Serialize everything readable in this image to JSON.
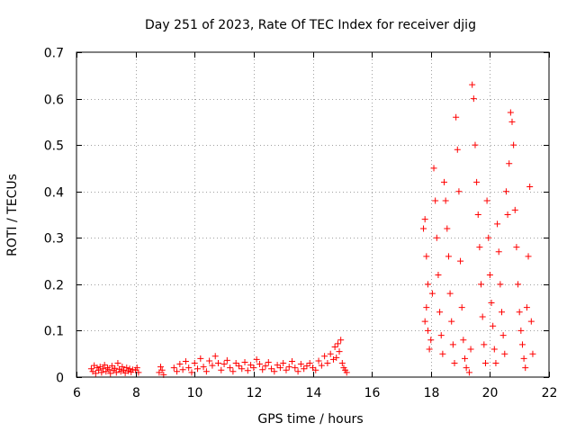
{
  "chart_data": {
    "type": "scatter",
    "title": "Day 251 of 2023, Rate Of TEC Index for receiver djig",
    "xlabel": "GPS time / hours",
    "ylabel": "ROTI / TECUs",
    "xlim": [
      6,
      22
    ],
    "ylim": [
      0,
      0.7
    ],
    "x_ticks": [
      6,
      8,
      10,
      12,
      14,
      16,
      18,
      20,
      22
    ],
    "y_ticks": [
      0,
      0.1,
      0.2,
      0.3,
      0.4,
      0.5,
      0.6,
      0.7
    ],
    "x_tick_labels": [
      "6",
      "8",
      "10",
      "12",
      "14",
      "16",
      "18",
      "20",
      "22"
    ],
    "y_tick_labels": [
      "0",
      "0.1",
      "0.2",
      "0.3",
      "0.4",
      "0.5",
      "0.6",
      "0.7"
    ],
    "grid": true,
    "marker": "+",
    "color": "#ff0000",
    "series": [
      {
        "name": "ROTI",
        "points": [
          [
            6.5,
            0.018
          ],
          [
            6.55,
            0.012
          ],
          [
            6.6,
            0.025
          ],
          [
            6.65,
            0.008
          ],
          [
            6.7,
            0.02
          ],
          [
            6.75,
            0.015
          ],
          [
            6.8,
            0.022
          ],
          [
            6.85,
            0.01
          ],
          [
            6.9,
            0.018
          ],
          [
            6.95,
            0.026
          ],
          [
            7.0,
            0.012
          ],
          [
            7.05,
            0.02
          ],
          [
            7.1,
            0.016
          ],
          [
            7.15,
            0.008
          ],
          [
            7.2,
            0.024
          ],
          [
            7.25,
            0.014
          ],
          [
            7.3,
            0.019
          ],
          [
            7.35,
            0.01
          ],
          [
            7.4,
            0.03
          ],
          [
            7.45,
            0.017
          ],
          [
            7.5,
            0.012
          ],
          [
            7.55,
            0.022
          ],
          [
            7.6,
            0.015
          ],
          [
            7.65,
            0.009
          ],
          [
            7.7,
            0.02
          ],
          [
            7.75,
            0.013
          ],
          [
            7.8,
            0.018
          ],
          [
            7.85,
            0.011
          ],
          [
            7.9,
            0.016
          ],
          [
            8.0,
            0.015
          ],
          [
            8.05,
            0.02
          ],
          [
            8.1,
            0.01
          ],
          [
            8.8,
            0.01
          ],
          [
            8.85,
            0.022
          ],
          [
            8.9,
            0.015
          ],
          [
            8.95,
            0.005
          ],
          [
            9.3,
            0.02
          ],
          [
            9.4,
            0.012
          ],
          [
            9.5,
            0.028
          ],
          [
            9.6,
            0.016
          ],
          [
            9.7,
            0.034
          ],
          [
            9.8,
            0.02
          ],
          [
            9.9,
            0.01
          ],
          [
            10.0,
            0.03
          ],
          [
            10.1,
            0.018
          ],
          [
            10.2,
            0.04
          ],
          [
            10.3,
            0.022
          ],
          [
            10.4,
            0.012
          ],
          [
            10.5,
            0.035
          ],
          [
            10.6,
            0.025
          ],
          [
            10.7,
            0.045
          ],
          [
            10.8,
            0.03
          ],
          [
            10.9,
            0.015
          ],
          [
            11.0,
            0.028
          ],
          [
            11.1,
            0.036
          ],
          [
            11.2,
            0.02
          ],
          [
            11.3,
            0.012
          ],
          [
            11.4,
            0.03
          ],
          [
            11.5,
            0.024
          ],
          [
            11.6,
            0.018
          ],
          [
            11.7,
            0.032
          ],
          [
            11.8,
            0.014
          ],
          [
            11.9,
            0.026
          ],
          [
            12.0,
            0.02
          ],
          [
            12.1,
            0.038
          ],
          [
            12.2,
            0.028
          ],
          [
            12.3,
            0.016
          ],
          [
            12.4,
            0.024
          ],
          [
            12.5,
            0.032
          ],
          [
            12.6,
            0.018
          ],
          [
            12.7,
            0.012
          ],
          [
            12.8,
            0.026
          ],
          [
            12.9,
            0.02
          ],
          [
            13.0,
            0.03
          ],
          [
            13.1,
            0.015
          ],
          [
            13.2,
            0.022
          ],
          [
            13.3,
            0.034
          ],
          [
            13.4,
            0.02
          ],
          [
            13.5,
            0.012
          ],
          [
            13.6,
            0.028
          ],
          [
            13.7,
            0.018
          ],
          [
            13.8,
            0.024
          ],
          [
            13.9,
            0.03
          ],
          [
            14.0,
            0.02
          ],
          [
            14.1,
            0.015
          ],
          [
            14.2,
            0.035
          ],
          [
            14.3,
            0.025
          ],
          [
            14.4,
            0.045
          ],
          [
            14.5,
            0.03
          ],
          [
            14.6,
            0.05
          ],
          [
            14.7,
            0.038
          ],
          [
            14.75,
            0.065
          ],
          [
            14.8,
            0.042
          ],
          [
            14.85,
            0.072
          ],
          [
            14.9,
            0.055
          ],
          [
            14.95,
            0.08
          ],
          [
            15.0,
            0.03
          ],
          [
            15.05,
            0.02
          ],
          [
            15.1,
            0.015
          ],
          [
            15.15,
            0.01
          ],
          [
            17.75,
            0.32
          ],
          [
            17.8,
            0.34
          ],
          [
            17.85,
            0.26
          ],
          [
            17.9,
            0.2
          ],
          [
            17.8,
            0.12
          ],
          [
            17.85,
            0.15
          ],
          [
            17.9,
            0.1
          ],
          [
            17.95,
            0.06
          ],
          [
            18.0,
            0.08
          ],
          [
            18.05,
            0.18
          ],
          [
            18.1,
            0.45
          ],
          [
            18.15,
            0.38
          ],
          [
            18.2,
            0.3
          ],
          [
            18.25,
            0.22
          ],
          [
            18.3,
            0.14
          ],
          [
            18.35,
            0.09
          ],
          [
            18.4,
            0.05
          ],
          [
            18.45,
            0.42
          ],
          [
            18.5,
            0.38
          ],
          [
            18.55,
            0.32
          ],
          [
            18.6,
            0.26
          ],
          [
            18.65,
            0.18
          ],
          [
            18.7,
            0.12
          ],
          [
            18.75,
            0.07
          ],
          [
            18.8,
            0.03
          ],
          [
            18.85,
            0.56
          ],
          [
            18.9,
            0.49
          ],
          [
            18.95,
            0.4
          ],
          [
            19.0,
            0.25
          ],
          [
            19.05,
            0.15
          ],
          [
            19.1,
            0.08
          ],
          [
            19.15,
            0.04
          ],
          [
            19.2,
            0.02
          ],
          [
            19.3,
            0.01
          ],
          [
            19.35,
            0.06
          ],
          [
            19.4,
            0.63
          ],
          [
            19.45,
            0.6
          ],
          [
            19.5,
            0.5
          ],
          [
            19.55,
            0.42
          ],
          [
            19.6,
            0.35
          ],
          [
            19.65,
            0.28
          ],
          [
            19.7,
            0.2
          ],
          [
            19.75,
            0.13
          ],
          [
            19.8,
            0.07
          ],
          [
            19.85,
            0.03
          ],
          [
            19.9,
            0.38
          ],
          [
            19.95,
            0.3
          ],
          [
            20.0,
            0.22
          ],
          [
            20.05,
            0.16
          ],
          [
            20.1,
            0.11
          ],
          [
            20.15,
            0.06
          ],
          [
            20.2,
            0.03
          ],
          [
            20.25,
            0.33
          ],
          [
            20.3,
            0.27
          ],
          [
            20.35,
            0.2
          ],
          [
            20.4,
            0.14
          ],
          [
            20.45,
            0.09
          ],
          [
            20.5,
            0.05
          ],
          [
            20.55,
            0.4
          ],
          [
            20.6,
            0.35
          ],
          [
            20.65,
            0.46
          ],
          [
            20.7,
            0.57
          ],
          [
            20.75,
            0.55
          ],
          [
            20.8,
            0.5
          ],
          [
            20.85,
            0.36
          ],
          [
            20.9,
            0.28
          ],
          [
            20.95,
            0.2
          ],
          [
            21.0,
            0.14
          ],
          [
            21.05,
            0.1
          ],
          [
            21.1,
            0.07
          ],
          [
            21.15,
            0.04
          ],
          [
            21.2,
            0.02
          ],
          [
            21.25,
            0.15
          ],
          [
            21.3,
            0.26
          ],
          [
            21.35,
            0.41
          ],
          [
            21.4,
            0.12
          ],
          [
            21.45,
            0.05
          ]
        ]
      }
    ]
  }
}
